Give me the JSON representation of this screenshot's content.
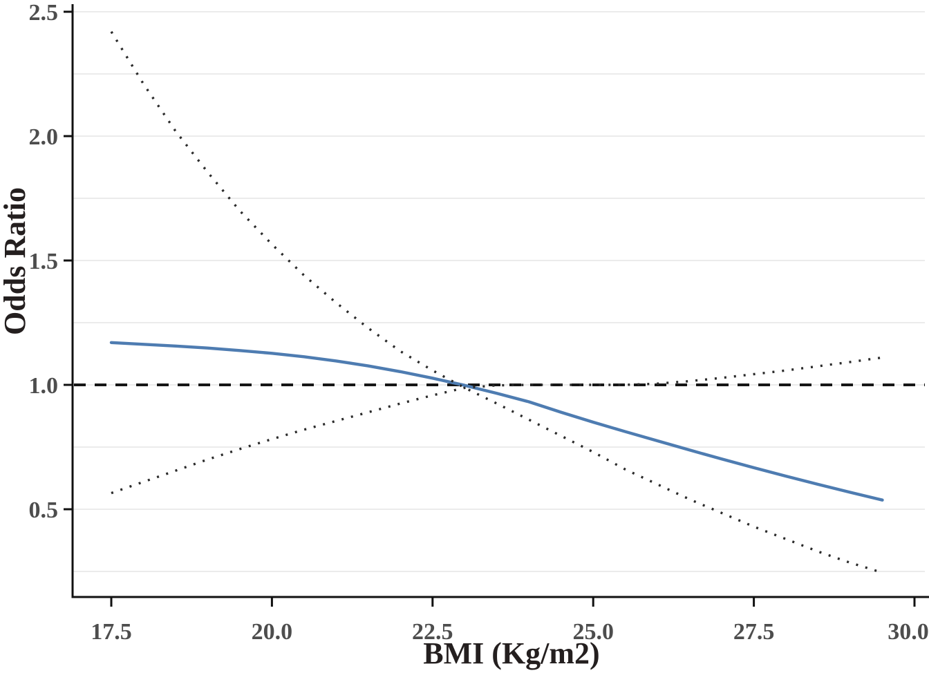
{
  "figure": {
    "background": "#ffffff"
  },
  "chart_data": {
    "type": "line",
    "title": "",
    "xlabel": "BMI (Kg/m2)",
    "ylabel": "Odds Ratio",
    "xlim": [
      16.9,
      30.17
    ],
    "ylim": [
      0.15,
      2.53
    ],
    "grid": "horizontal-minor-only",
    "minor_gridline_step": 0.25,
    "gridline_values": [
      0.25,
      0.5,
      0.75,
      1.0,
      1.25,
      1.5,
      1.75,
      2.0,
      2.25,
      2.5
    ],
    "x_ticks": [
      17.5,
      20.0,
      22.5,
      25.0,
      27.5,
      30.0
    ],
    "x_tick_labels": [
      "17.5",
      "20.0",
      "22.5",
      "25.0",
      "27.5",
      "30.0"
    ],
    "y_ticks": [
      0.5,
      1.0,
      1.5,
      2.0,
      2.5
    ],
    "y_tick_labels": [
      "0.5",
      "1.0",
      "1.5",
      "2.0",
      "2.5"
    ],
    "legend": "none",
    "reference_line": {
      "y": 1.0,
      "style": "dashed",
      "color": "#161616"
    },
    "reference_point_bmi": 23.0,
    "x": [
      17.5,
      18,
      18.5,
      19,
      19.5,
      20,
      20.5,
      21,
      21.5,
      22,
      22.5,
      23,
      23.5,
      24,
      24.5,
      25,
      25.5,
      26,
      26.5,
      27,
      27.5,
      28,
      28.5,
      29,
      29.5
    ],
    "series": [
      {
        "name": "odds-ratio-estimate",
        "style": "solid",
        "color": "#4e7cb1",
        "values": [
          1.17,
          1.163,
          1.156,
          1.148,
          1.138,
          1.127,
          1.113,
          1.096,
          1.076,
          1.053,
          1.027,
          0.998,
          0.966,
          0.932,
          0.89,
          0.85,
          0.812,
          0.775,
          0.738,
          0.702,
          0.667,
          0.633,
          0.6,
          0.568,
          0.537
        ]
      },
      {
        "name": "ci-bound-descending",
        "style": "dotted",
        "color": "#2b2b2b",
        "values": [
          2.42,
          2.21,
          2.02,
          1.855,
          1.7,
          1.565,
          1.44,
          1.33,
          1.228,
          1.135,
          1.058,
          0.988,
          0.925,
          0.86,
          0.795,
          0.73,
          0.66,
          0.6,
          0.54,
          0.485,
          0.43,
          0.38,
          0.33,
          0.285,
          0.245
        ]
      },
      {
        "name": "ci-bound-ascending",
        "style": "dotted",
        "color": "#2b2b2b",
        "values": [
          0.565,
          0.61,
          0.655,
          0.7,
          0.742,
          0.782,
          0.82,
          0.855,
          0.89,
          0.925,
          0.958,
          0.988,
          0.998,
          1.0,
          1.0,
          1.0,
          1.0,
          1.005,
          1.015,
          1.028,
          1.043,
          1.058,
          1.075,
          1.092,
          1.11
        ]
      }
    ],
    "colors": {
      "estimate_line": "#4e7cb1",
      "ci_dotted": "#2b2b2b",
      "reference_dashed": "#161616",
      "gridline": "#ebebeb",
      "axis": "#111111",
      "tick_label": "#4d4d4d",
      "axis_title": "#241f1f"
    }
  }
}
